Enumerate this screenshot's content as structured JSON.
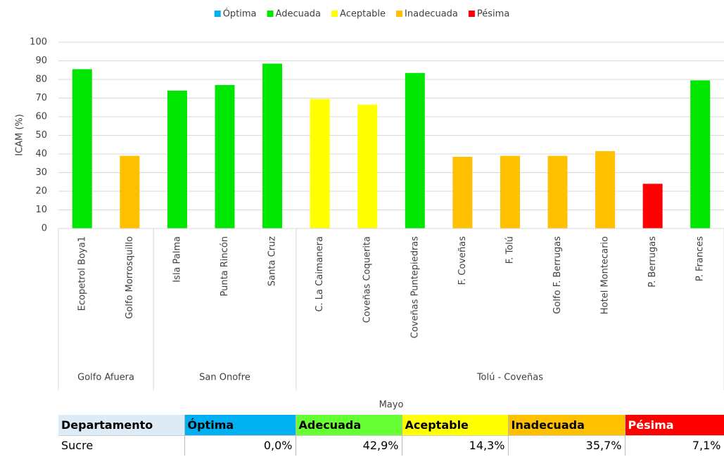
{
  "chart_data": {
    "type": "bar",
    "y_label": "ICAM (%)",
    "x_group_label": "Mayo",
    "groups": [
      {
        "name": "Golfo Afuera",
        "categories": [
          "Ecopetrol Boya1",
          "Golfo Morrosquillo"
        ]
      },
      {
        "name": "San Onofre",
        "categories": [
          "Isla Palma",
          "Punta Rincón",
          "Santa Cruz"
        ]
      },
      {
        "name": "Tolú - Coveñas",
        "categories": [
          "C. La Caimanera",
          "Coveñas Coquerita",
          "Coveñas Puntepiedras",
          "F. Coveñas",
          "F. Tolú",
          "Golfo F. Berrugas",
          "Hotel Montecario",
          "P. Berrugas",
          "P. Frances"
        ]
      }
    ],
    "series": [
      {
        "name": "Óptima",
        "color": "#00b0f0",
        "values": [
          null,
          null,
          null,
          null,
          null,
          null,
          null,
          null,
          null,
          null,
          null,
          null,
          null,
          null
        ]
      },
      {
        "name": "Adecuada",
        "color": "#00e600",
        "values": [
          85.5,
          null,
          74,
          77,
          88.5,
          null,
          null,
          83.5,
          null,
          null,
          null,
          null,
          null,
          79.5
        ]
      },
      {
        "name": "Aceptable",
        "color": "#ffff00",
        "values": [
          null,
          null,
          null,
          null,
          null,
          69.5,
          66.5,
          null,
          null,
          null,
          null,
          null,
          null,
          null
        ]
      },
      {
        "name": "Inadecuada",
        "color": "#ffc000",
        "values": [
          null,
          39,
          null,
          null,
          null,
          null,
          null,
          null,
          38.5,
          39,
          39,
          41.5,
          null,
          null
        ]
      },
      {
        "name": "Pésima",
        "color": "#ff0000",
        "values": [
          null,
          null,
          null,
          null,
          null,
          null,
          null,
          null,
          null,
          null,
          null,
          null,
          24,
          null
        ]
      }
    ],
    "ylim": [
      0,
      100
    ],
    "yticks": [
      0,
      10,
      20,
      30,
      40,
      50,
      60,
      70,
      80,
      90,
      100
    ],
    "grid": true
  },
  "table": {
    "header": [
      "Departamento",
      "Óptima",
      "Adecuada",
      "Aceptable",
      "Inadecuada",
      "Pésima"
    ],
    "header_colors": [
      "#ddebf7",
      "#00b0f0",
      "#66ff33",
      "#ffff00",
      "#ffc000",
      "#ff0000"
    ],
    "rows": [
      [
        "Sucre",
        "0,0%",
        "42,9%",
        "14,3%",
        "35,7%",
        "7,1%"
      ]
    ]
  }
}
